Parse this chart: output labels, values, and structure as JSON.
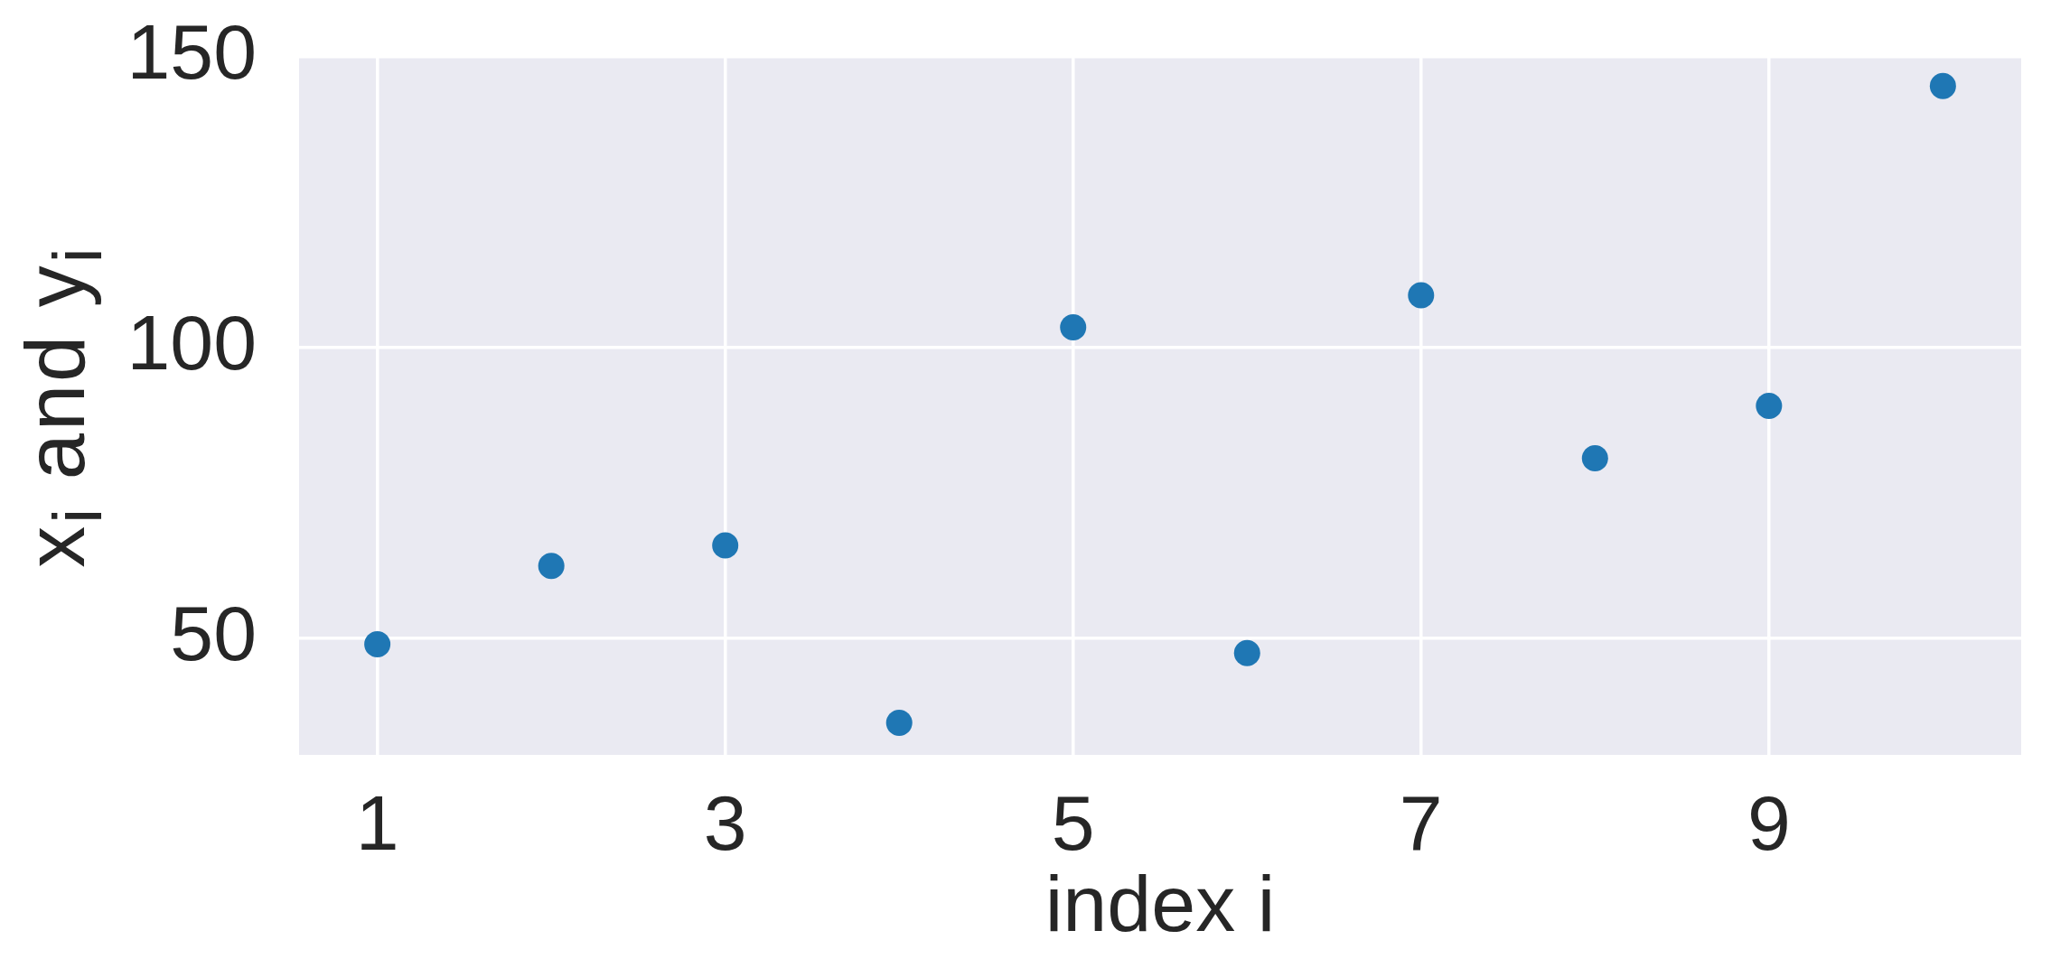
{
  "chart_data": {
    "type": "scatter",
    "xlabel": "index i",
    "ylabel": "x$_{i}$ and y$_{i}$",
    "x": [
      1,
      2,
      3,
      4,
      5,
      6,
      7,
      8,
      9,
      10
    ],
    "values": [
      49,
      62.5,
      66,
      35.5,
      103.5,
      47.5,
      109,
      81,
      90,
      145
    ],
    "color": "#1f77b4",
    "xlim": [
      0.55,
      10.45
    ],
    "ylim": [
      30,
      150
    ],
    "xticks": [
      1,
      3,
      5,
      7,
      9
    ],
    "yticks": [
      50,
      100,
      150
    ],
    "grid": true,
    "marker": "circle"
  }
}
